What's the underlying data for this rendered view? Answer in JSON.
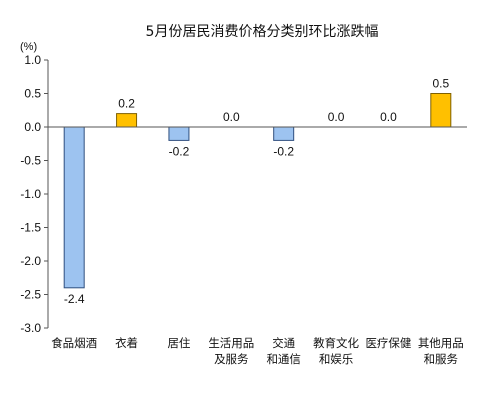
{
  "chart_data": {
    "type": "bar",
    "title": "5月份居民消费价格分类别环比涨跌幅",
    "unit_label": "(%)",
    "ylim": [
      -3.0,
      1.0
    ],
    "yticks": [
      "1.0",
      "0.5",
      "0.0",
      "-0.5",
      "-1.0",
      "-1.5",
      "-2.0",
      "-2.5",
      "-3.0"
    ],
    "categories": [
      [
        "食品烟酒"
      ],
      [
        "衣着"
      ],
      [
        "居住"
      ],
      [
        "生活用品",
        "及服务"
      ],
      [
        "交通",
        "和通信"
      ],
      [
        "教育文化",
        "和娱乐"
      ],
      [
        "医疗保健"
      ],
      [
        "其他用品",
        "和服务"
      ]
    ],
    "values": [
      -2.4,
      0.2,
      -0.2,
      0.0,
      -0.2,
      0.0,
      0.0,
      0.5
    ],
    "value_labels": [
      "-2.4",
      "0.2",
      "-0.2",
      "0.0",
      "-0.2",
      "0.0",
      "0.0",
      "0.5"
    ],
    "colors": {
      "positive_fill": "#FFC000",
      "positive_stroke": "#7F6000",
      "negative_fill": "#9DC3F0",
      "negative_stroke": "#2F4F7F",
      "axis": "#555555"
    },
    "grid": false,
    "legend": "none"
  }
}
